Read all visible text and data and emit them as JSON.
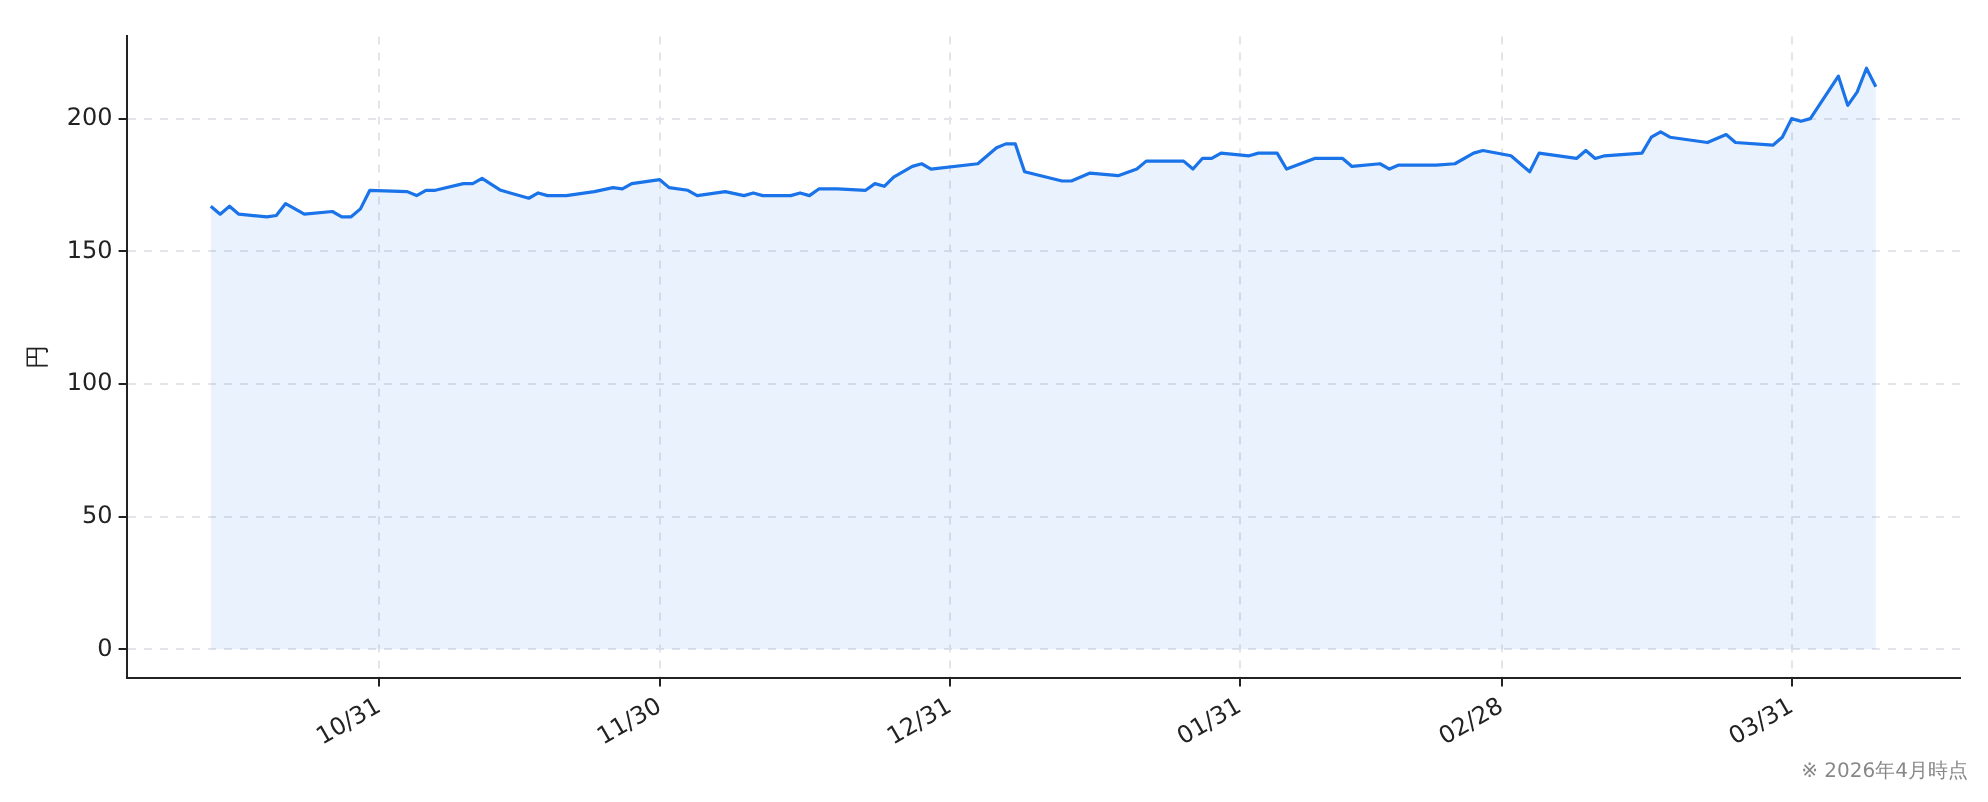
{
  "chart_data": {
    "type": "area",
    "ylabel": "円",
    "x": [
      "2025-10-13",
      "2025-10-14",
      "2025-10-15",
      "2025-10-16",
      "2025-10-19",
      "2025-10-20",
      "2025-10-21",
      "2025-10-23",
      "2025-10-26",
      "2025-10-27",
      "2025-10-28",
      "2025-10-29",
      "2025-10-30",
      "2025-11-03",
      "2025-11-04",
      "2025-11-05",
      "2025-11-06",
      "2025-11-09",
      "2025-11-10",
      "2025-11-11",
      "2025-11-13",
      "2025-11-16",
      "2025-11-17",
      "2025-11-18",
      "2025-11-20",
      "2025-11-23",
      "2025-11-25",
      "2025-11-26",
      "2025-11-27",
      "2025-11-30",
      "2025-12-01",
      "2025-12-03",
      "2025-12-04",
      "2025-12-07",
      "2025-12-09",
      "2025-12-10",
      "2025-12-11",
      "2025-12-14",
      "2025-12-15",
      "2025-12-16",
      "2025-12-17",
      "2025-12-19",
      "2025-12-22",
      "2025-12-23",
      "2025-12-24",
      "2025-12-25",
      "2025-12-27",
      "2025-12-28",
      "2025-12-29",
      "2026-01-03",
      "2026-01-05",
      "2026-01-06",
      "2026-01-07",
      "2026-01-08",
      "2026-01-12",
      "2026-01-13",
      "2026-01-14",
      "2026-01-15",
      "2026-01-18",
      "2026-01-20",
      "2026-01-21",
      "2026-01-25",
      "2026-01-26",
      "2026-01-27",
      "2026-01-28",
      "2026-01-29",
      "2026-02-01",
      "2026-02-02",
      "2026-02-04",
      "2026-02-05",
      "2026-02-08",
      "2026-02-11",
      "2026-02-12",
      "2026-02-15",
      "2026-02-16",
      "2026-02-17",
      "2026-02-21",
      "2026-02-23",
      "2026-02-25",
      "2026-02-26",
      "2026-03-01",
      "2026-03-03",
      "2026-03-04",
      "2026-03-08",
      "2026-03-09",
      "2026-03-10",
      "2026-03-11",
      "2026-03-15",
      "2026-03-16",
      "2026-03-17",
      "2026-03-18",
      "2026-03-22",
      "2026-03-24",
      "2026-03-25",
      "2026-03-29",
      "2026-03-30",
      "2026-03-31",
      "2026-04-01",
      "2026-04-02",
      "2026-04-05",
      "2026-04-06",
      "2026-04-07",
      "2026-04-08",
      "2026-04-09"
    ],
    "series": [
      {
        "color": "#1a73e8",
        "values": [
          167,
          164,
          167,
          164,
          163,
          163.5,
          168,
          164,
          165,
          163,
          163,
          166,
          173,
          172.5,
          171,
          173,
          173,
          175.5,
          175.5,
          177.5,
          173,
          170,
          172,
          171,
          171,
          172.5,
          174,
          173.5,
          175.5,
          177,
          174,
          173,
          171,
          172.5,
          171,
          172,
          171,
          171,
          172,
          171,
          173.5,
          173.5,
          173,
          175.5,
          174.5,
          178,
          182,
          183,
          181,
          183,
          189,
          190.5,
          190.5,
          180,
          176.5,
          176.5,
          178,
          179.5,
          178.5,
          181,
          184,
          184,
          181,
          185,
          185,
          187,
          186,
          187,
          187,
          181,
          185,
          185,
          182,
          183,
          181,
          182.5,
          182.5,
          183,
          187,
          188,
          186,
          180,
          187,
          185,
          188,
          185,
          186,
          187,
          193,
          195,
          193,
          191,
          194,
          191,
          190,
          193,
          200,
          199,
          200,
          216,
          205,
          210,
          219,
          212
        ]
      }
    ],
    "xlim": [
      "2025-10-04",
      "2026-04-18"
    ],
    "xticks": [
      {
        "value": "2025-10-31",
        "label": "10/31"
      },
      {
        "value": "2025-11-30",
        "label": "11/30"
      },
      {
        "value": "2025-12-31",
        "label": "12/31"
      },
      {
        "value": "2026-01-31",
        "label": "01/31"
      },
      {
        "value": "2026-02-28",
        "label": "02/28"
      },
      {
        "value": "2026-03-31",
        "label": "03/31"
      }
    ],
    "ylim": [
      -11,
      231
    ],
    "yticks": [
      0,
      50,
      100,
      150,
      200
    ],
    "grid": true,
    "line_style": "solid",
    "marker": "none",
    "annotations": [
      "※ 2026年4月時点"
    ]
  }
}
